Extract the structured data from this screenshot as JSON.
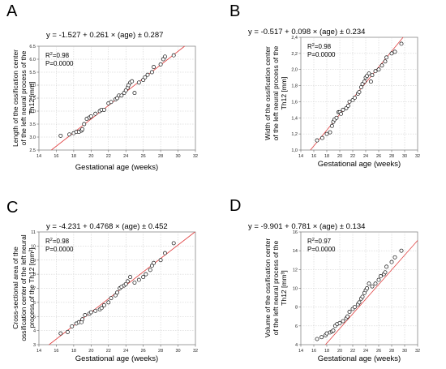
{
  "chart_data": [
    {
      "panel": "A",
      "type": "scatter",
      "equation": "y = -1.527 + 0.261 × (age) ± 0.287",
      "r2_label": "R",
      "r2_value": "=0.98",
      "p_label": "P=0.0000",
      "xlabel": "Gestational age (weeks)",
      "ylabel_lines": [
        "Length of the ossification center",
        "of the left neural process of the",
        "Th12 [mm]"
      ],
      "xlim": [
        14,
        32
      ],
      "ylim": [
        2.5,
        6.5
      ],
      "xticks": [
        14,
        16,
        18,
        20,
        22,
        24,
        26,
        28,
        30,
        32
      ],
      "yticks": [
        "2.5",
        "3.0",
        "3.5",
        "4.0",
        "4.5",
        "5.0",
        "5.5",
        "6.0",
        "6.5"
      ],
      "fit": {
        "intercept": -1.527,
        "slope": 0.261
      },
      "points": [
        [
          16.5,
          3.05
        ],
        [
          17.5,
          3.1
        ],
        [
          18,
          3.15
        ],
        [
          18.3,
          3.2
        ],
        [
          18.6,
          3.2
        ],
        [
          18.9,
          3.25
        ],
        [
          19,
          3.3
        ],
        [
          19.2,
          3.5
        ],
        [
          19.5,
          3.7
        ],
        [
          19.8,
          3.75
        ],
        [
          20,
          3.8
        ],
        [
          20.5,
          3.9
        ],
        [
          21,
          4.0
        ],
        [
          21.2,
          4.05
        ],
        [
          21.5,
          4.05
        ],
        [
          22,
          4.3
        ],
        [
          22.3,
          4.35
        ],
        [
          22.8,
          4.45
        ],
        [
          23,
          4.5
        ],
        [
          23.2,
          4.6
        ],
        [
          23.5,
          4.6
        ],
        [
          23.8,
          4.7
        ],
        [
          24,
          4.8
        ],
        [
          24.2,
          4.9
        ],
        [
          24.3,
          5.0
        ],
        [
          24.5,
          5.1
        ],
        [
          24.7,
          5.15
        ],
        [
          25,
          4.7
        ],
        [
          25.5,
          5.1
        ],
        [
          26,
          5.2
        ],
        [
          26.2,
          5.3
        ],
        [
          26.5,
          5.4
        ],
        [
          27,
          5.5
        ],
        [
          27.2,
          5.7
        ],
        [
          28,
          5.8
        ],
        [
          28.3,
          6.0
        ],
        [
          28.5,
          6.1
        ],
        [
          29.5,
          6.15
        ]
      ]
    },
    {
      "panel": "B",
      "type": "scatter",
      "equation": "y = -0.517 + 0.098 × (age) ± 0.234",
      "r2_label": "R",
      "r2_value": "=0.98",
      "p_label": "P=0.0000",
      "xlabel": "Gestational age (weeks)",
      "ylabel_lines": [
        "Width of the ossification center",
        "of the left neural process of the",
        "Th12 [mm]"
      ],
      "xlim": [
        14,
        32
      ],
      "ylim": [
        1.0,
        2.4
      ],
      "xticks": [
        14,
        16,
        18,
        20,
        22,
        24,
        26,
        28,
        30,
        32
      ],
      "yticks": [
        "1,0",
        "1,2",
        "1,4",
        "1,6",
        "1,8",
        "2,0",
        "2,2",
        "2,4"
      ],
      "fit": {
        "intercept": -0.517,
        "slope": 0.098
      },
      "points": [
        [
          16.5,
          1.12
        ],
        [
          17.3,
          1.15
        ],
        [
          18,
          1.2
        ],
        [
          18.5,
          1.22
        ],
        [
          18.8,
          1.3
        ],
        [
          19,
          1.35
        ],
        [
          19.2,
          1.38
        ],
        [
          19.5,
          1.4
        ],
        [
          19.8,
          1.47
        ],
        [
          20,
          1.47
        ],
        [
          20.2,
          1.45
        ],
        [
          20.5,
          1.5
        ],
        [
          21,
          1.52
        ],
        [
          21.3,
          1.55
        ],
        [
          21.5,
          1.6
        ],
        [
          22,
          1.62
        ],
        [
          22.3,
          1.65
        ],
        [
          22.8,
          1.7
        ],
        [
          23,
          1.72
        ],
        [
          23.3,
          1.78
        ],
        [
          23.5,
          1.82
        ],
        [
          23.8,
          1.85
        ],
        [
          24,
          1.9
        ],
        [
          24.2,
          1.92
        ],
        [
          24.5,
          1.95
        ],
        [
          24.8,
          1.85
        ],
        [
          25,
          1.93
        ],
        [
          25.5,
          1.98
        ],
        [
          26,
          2.0
        ],
        [
          26.5,
          2.05
        ],
        [
          27,
          2.1
        ],
        [
          27.2,
          2.15
        ],
        [
          28,
          2.2
        ],
        [
          28.5,
          2.22
        ],
        [
          29.5,
          2.32
        ]
      ]
    },
    {
      "panel": "C",
      "type": "scatter",
      "equation": "y = -4.231 + 0.4768 × (age) ± 0.452",
      "r2_label": "R",
      "r2_value": "=0.98",
      "p_label": "P=0.0000",
      "xlabel": "Gestational age (weeks)",
      "ylabel_lines": [
        "Cross-sectional area of the",
        "ossification center of the left neural",
        "process of the Th12 [mm²]"
      ],
      "xlim": [
        14,
        32
      ],
      "ylim": [
        3,
        11
      ],
      "xticks": [
        14,
        16,
        18,
        20,
        22,
        24,
        26,
        28,
        30,
        32
      ],
      "yticks": [
        "3",
        "4",
        "5",
        "6",
        "7",
        "8",
        "9",
        "10",
        "11"
      ],
      "fit": {
        "intercept": -4.231,
        "slope": 0.4768
      },
      "points": [
        [
          16.5,
          3.8
        ],
        [
          17.3,
          3.9
        ],
        [
          17.8,
          4.3
        ],
        [
          18.3,
          4.5
        ],
        [
          18.6,
          4.6
        ],
        [
          18.9,
          4.6
        ],
        [
          19,
          4.8
        ],
        [
          19.3,
          5.1
        ],
        [
          19.8,
          5.2
        ],
        [
          20,
          5.3
        ],
        [
          20.5,
          5.4
        ],
        [
          21,
          5.5
        ],
        [
          21.2,
          5.6
        ],
        [
          21.5,
          5.8
        ],
        [
          22,
          6.0
        ],
        [
          22.3,
          6.3
        ],
        [
          22.8,
          6.5
        ],
        [
          23,
          6.7
        ],
        [
          23.3,
          7.0
        ],
        [
          23.5,
          7.1
        ],
        [
          23.8,
          7.2
        ],
        [
          24,
          7.3
        ],
        [
          24.2,
          7.5
        ],
        [
          24.5,
          7.8
        ],
        [
          25,
          7.4
        ],
        [
          25.5,
          7.6
        ],
        [
          26,
          7.8
        ],
        [
          26.3,
          8.0
        ],
        [
          26.8,
          8.3
        ],
        [
          27,
          8.6
        ],
        [
          27.2,
          8.8
        ],
        [
          28,
          9.0
        ],
        [
          28.5,
          9.5
        ],
        [
          29.5,
          10.2
        ]
      ]
    },
    {
      "panel": "D",
      "type": "scatter",
      "equation": "y = -9.901 + 0.781 × (age) ± 0.134",
      "r2_label": "R",
      "r2_value": "=0.97",
      "p_label": "P=0.0000",
      "xlabel": "Gestational age (weeks)",
      "ylabel_lines": [
        "Volume of the ossification center",
        "of the left neural process of the",
        "Th12 [mm³]"
      ],
      "xlim": [
        14,
        32
      ],
      "ylim": [
        4,
        16
      ],
      "xticks": [
        14,
        16,
        18,
        20,
        22,
        24,
        26,
        28,
        30,
        32
      ],
      "yticks": [
        "4",
        "6",
        "8",
        "10",
        "12",
        "14",
        "16"
      ],
      "fit": {
        "intercept": -9.901,
        "slope": 0.781
      },
      "points": [
        [
          16.5,
          4.6
        ],
        [
          17.2,
          4.8
        ],
        [
          17.8,
          5.0
        ],
        [
          18,
          5.2
        ],
        [
          18.5,
          5.3
        ],
        [
          18.8,
          5.4
        ],
        [
          19,
          5.5
        ],
        [
          19.3,
          6.0
        ],
        [
          19.6,
          6.2
        ],
        [
          20,
          6.3
        ],
        [
          20.5,
          6.5
        ],
        [
          21,
          6.8
        ],
        [
          21.2,
          7.0
        ],
        [
          21.5,
          7.5
        ],
        [
          22,
          7.8
        ],
        [
          22.3,
          8.0
        ],
        [
          22.8,
          8.3
        ],
        [
          23,
          8.5
        ],
        [
          23.3,
          8.9
        ],
        [
          23.5,
          9.1
        ],
        [
          23.8,
          9.5
        ],
        [
          24,
          9.8
        ],
        [
          24.2,
          10.0
        ],
        [
          24.5,
          10.5
        ],
        [
          25,
          10.2
        ],
        [
          25.5,
          10.5
        ],
        [
          26,
          10.9
        ],
        [
          26.3,
          11.3
        ],
        [
          26.8,
          11.5
        ],
        [
          27,
          11.7
        ],
        [
          27.2,
          12.3
        ],
        [
          28,
          12.8
        ],
        [
          28.5,
          13.3
        ],
        [
          29.5,
          14.0
        ]
      ]
    }
  ]
}
